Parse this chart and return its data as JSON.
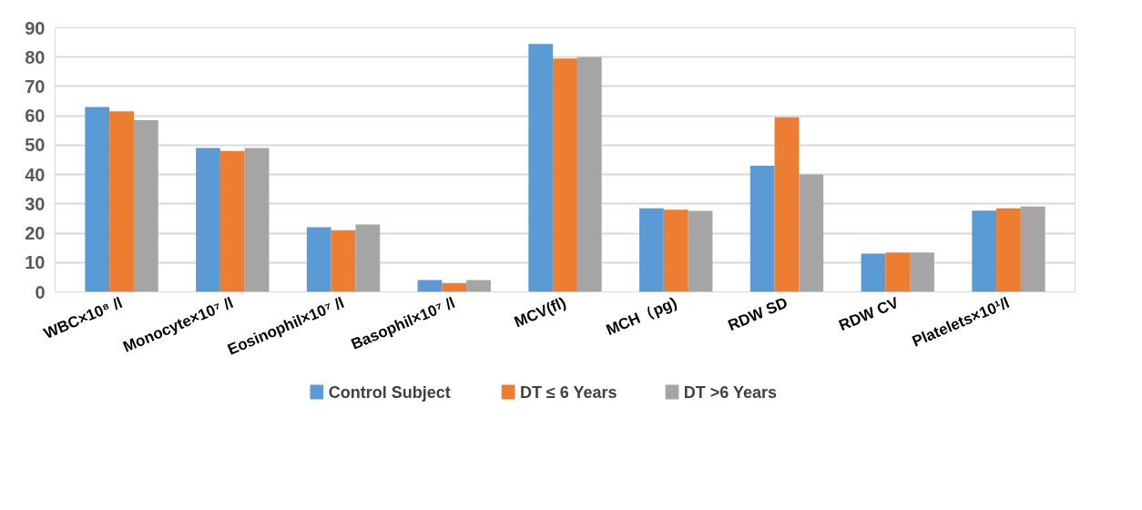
{
  "chart_data": {
    "type": "bar",
    "categories": [
      "WBC×10⁸ /l",
      "Monocyte×10⁷ /l",
      "Eosinophil×10⁷ /l",
      "Basophil×10⁷ /l",
      "MCV(fl)",
      "MCH（pg)",
      "RDW SD",
      "RDW CV",
      "Platelets×10¹/l"
    ],
    "series": [
      {
        "name": "Control Subject",
        "color": "#5b9bd5",
        "values": [
          63,
          49,
          22,
          4,
          84.5,
          28.5,
          43,
          13,
          27.7
        ]
      },
      {
        "name": "DT ≤ 6 Years",
        "color": "#ed7d31",
        "values": [
          61.5,
          48,
          21,
          3,
          79.5,
          28,
          59.5,
          13.4,
          28.5
        ]
      },
      {
        "name": "DT >6 Years",
        "color": "#a5a5a5",
        "values": [
          58.5,
          49,
          23,
          4,
          80,
          27.6,
          40,
          13.4,
          29.1
        ]
      }
    ],
    "ylim": [
      0,
      90
    ],
    "yticks": [
      0,
      10,
      20,
      30,
      40,
      50,
      60,
      70,
      80,
      90
    ],
    "grid": "y",
    "legend": "bottom"
  }
}
